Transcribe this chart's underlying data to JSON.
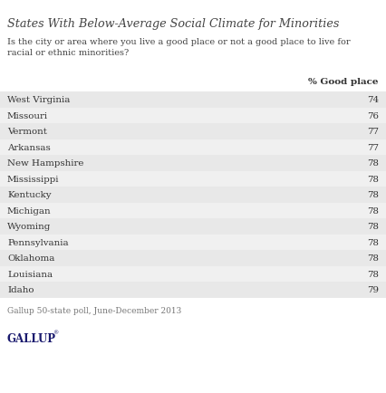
{
  "title": "States With Below-Average Social Climate for Minorities",
  "subtitle": "Is the city or area where you live a good place or not a good place to live for\nracial or ethnic minorities?",
  "column_header": "% Good place",
  "states": [
    "West Virginia",
    "Missouri",
    "Vermont",
    "Arkansas",
    "New Hampshire",
    "Mississippi",
    "Kentucky",
    "Michigan",
    "Wyoming",
    "Pennsylvania",
    "Oklahoma",
    "Louisiana",
    "Idaho"
  ],
  "values": [
    74,
    76,
    77,
    77,
    78,
    78,
    78,
    78,
    78,
    78,
    78,
    78,
    79
  ],
  "row_color_dark": "#e8e8e8",
  "row_color_light": "#f0f0f0",
  "footer": "Gallup 50-state poll, June-December 2013",
  "brand": "GALLUP",
  "background_color": "#ffffff",
  "title_color": "#444444",
  "subtitle_color": "#444444",
  "text_color": "#333333",
  "value_color": "#333333",
  "footer_color": "#777777",
  "brand_color": "#1a1a6e"
}
